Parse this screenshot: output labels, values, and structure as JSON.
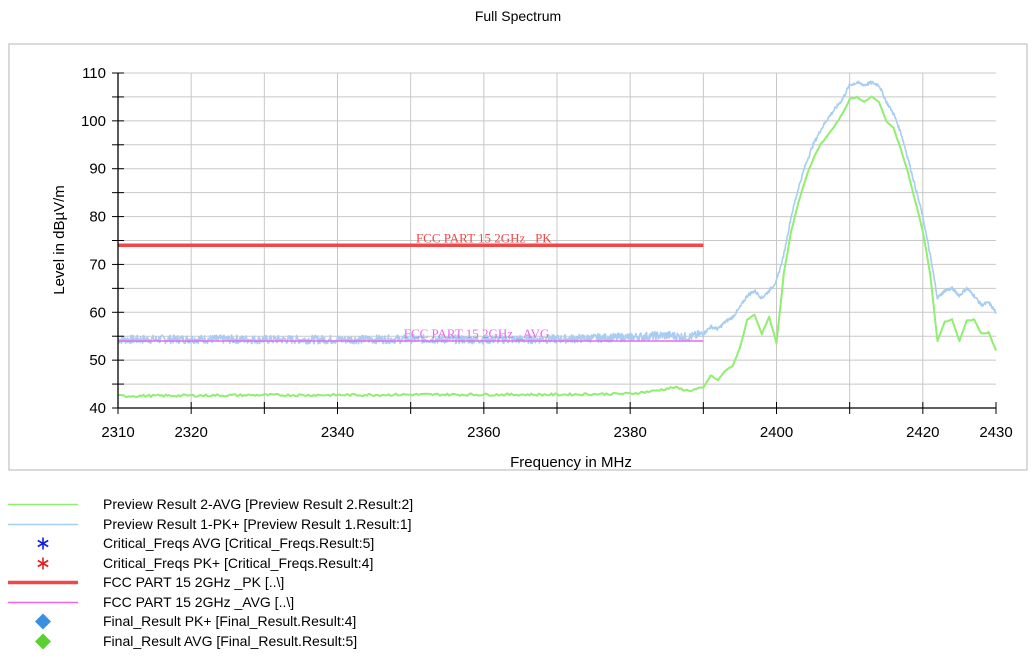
{
  "chart_data": {
    "type": "line",
    "title": "Full Spectrum",
    "xlabel": "Frequency in MHz",
    "ylabel": "Level in dBµV/m",
    "xlim": [
      2310,
      2430
    ],
    "ylim": [
      40,
      110
    ],
    "x_ticks": [
      2310,
      2320,
      2340,
      2360,
      2380,
      2400,
      2420,
      2430
    ],
    "y_ticks": [
      40,
      50,
      60,
      70,
      80,
      90,
      100,
      110
    ],
    "grid": true,
    "legend_position": "bottom",
    "colors": {
      "avg": "#90ee70",
      "pk": "#a6cdf2",
      "limit_pk": "#f04848",
      "limit_avg": "#ee66ee",
      "crit_avg": "#1020e0",
      "crit_pk": "#e02020",
      "final_pk": "#3a8fe0",
      "final_avg": "#5cd030"
    },
    "series": [
      {
        "name": "Preview Result 2-AVG",
        "x": [
          2310,
          2320,
          2330,
          2340,
          2350,
          2360,
          2370,
          2380,
          2383,
          2386,
          2388,
          2390,
          2391,
          2392,
          2393,
          2394,
          2395,
          2396,
          2397,
          2398,
          2399,
          2400,
          2401,
          2402,
          2403,
          2404,
          2405,
          2406,
          2407,
          2408,
          2409,
          2410,
          2411,
          2412,
          2413,
          2414,
          2415,
          2416,
          2417,
          2418,
          2419,
          2420,
          2421,
          2422,
          2423,
          2424,
          2425,
          2426,
          2427,
          2428,
          2429,
          2430
        ],
        "values": [
          42.5,
          42.6,
          42.7,
          42.7,
          42.8,
          42.8,
          42.8,
          43.0,
          43.5,
          44.3,
          43.6,
          44.2,
          46.8,
          45.8,
          47.8,
          48.8,
          52.5,
          58.5,
          59.5,
          55.5,
          59,
          53.5,
          68,
          77,
          83,
          88,
          92,
          95,
          97,
          99,
          101.5,
          104.5,
          105,
          104,
          105,
          104,
          100,
          98.5,
          94,
          89,
          83,
          77,
          68,
          54,
          58,
          58.5,
          54,
          58.2,
          58.5,
          55.5,
          55.8,
          52
        ]
      },
      {
        "name": "Preview Result 1-PK+",
        "x": [
          2310,
          2320,
          2330,
          2340,
          2350,
          2360,
          2370,
          2380,
          2385,
          2388,
          2390,
          2391,
          2392,
          2393,
          2394,
          2395,
          2396,
          2397,
          2398,
          2399,
          2400,
          2401,
          2402,
          2403,
          2404,
          2405,
          2406,
          2407,
          2408,
          2409,
          2410,
          2411,
          2412,
          2413,
          2414,
          2415,
          2416,
          2417,
          2418,
          2419,
          2420,
          2421,
          2422,
          2423,
          2424,
          2425,
          2426,
          2427,
          2428,
          2429,
          2430
        ],
        "values": [
          54.3,
          54.4,
          54.3,
          54.3,
          54.4,
          54.3,
          54.4,
          54.8,
          55.2,
          54.8,
          55.5,
          57,
          56.5,
          58,
          59,
          61,
          63.5,
          64.5,
          63,
          64.5,
          66.5,
          72,
          80,
          86,
          91,
          95,
          98,
          100.5,
          102.5,
          104.5,
          107.5,
          108,
          107.5,
          108,
          107.5,
          104,
          101.5,
          97.5,
          92,
          86,
          80,
          72,
          63,
          64.5,
          65,
          63.5,
          65,
          63.5,
          61.5,
          62,
          60
        ]
      },
      {
        "name": "FCC PART 15 2GHz _PK",
        "x": [
          2310,
          2390
        ],
        "values": [
          74,
          74
        ]
      },
      {
        "name": "FCC PART 15 2GHz _AVG",
        "x": [
          2310,
          2390
        ],
        "values": [
          54,
          54
        ]
      }
    ],
    "annotations": [
      {
        "text": "FCC PART 15 2GHz _PK",
        "x": 2360,
        "y": 74,
        "color": "#f04848"
      },
      {
        "text": "FCC PART 15 2GHz _AVG",
        "x": 2359,
        "y": 54,
        "color": "#ee66ee"
      }
    ],
    "legend": [
      {
        "label": "Preview Result 2-AVG   [Preview Result 2.Result:2]",
        "marker": "line-thin",
        "color": "#90ee70"
      },
      {
        "label": "Preview Result 1-PK+   [Preview Result 1.Result:1]",
        "marker": "line-thin",
        "color": "#a6cdf2"
      },
      {
        "label": "Critical_Freqs AVG   [Critical_Freqs.Result:5]",
        "marker": "asterisk",
        "color": "#1020e0"
      },
      {
        "label": "Critical_Freqs PK+   [Critical_Freqs.Result:4]",
        "marker": "asterisk",
        "color": "#e02020"
      },
      {
        "label": "FCC PART 15 2GHz _PK   [..\\]",
        "marker": "line-thick",
        "color": "#f04848"
      },
      {
        "label": "FCC PART 15 2GHz _AVG   [..\\]",
        "marker": "line-thin",
        "color": "#ee66ee"
      },
      {
        "label": "Final_Result PK+   [Final_Result.Result:4]",
        "marker": "diamond",
        "color": "#3a8fe0"
      },
      {
        "label": "Final_Result AVG   [Final_Result.Result:5]",
        "marker": "diamond",
        "color": "#5cd030"
      }
    ]
  }
}
